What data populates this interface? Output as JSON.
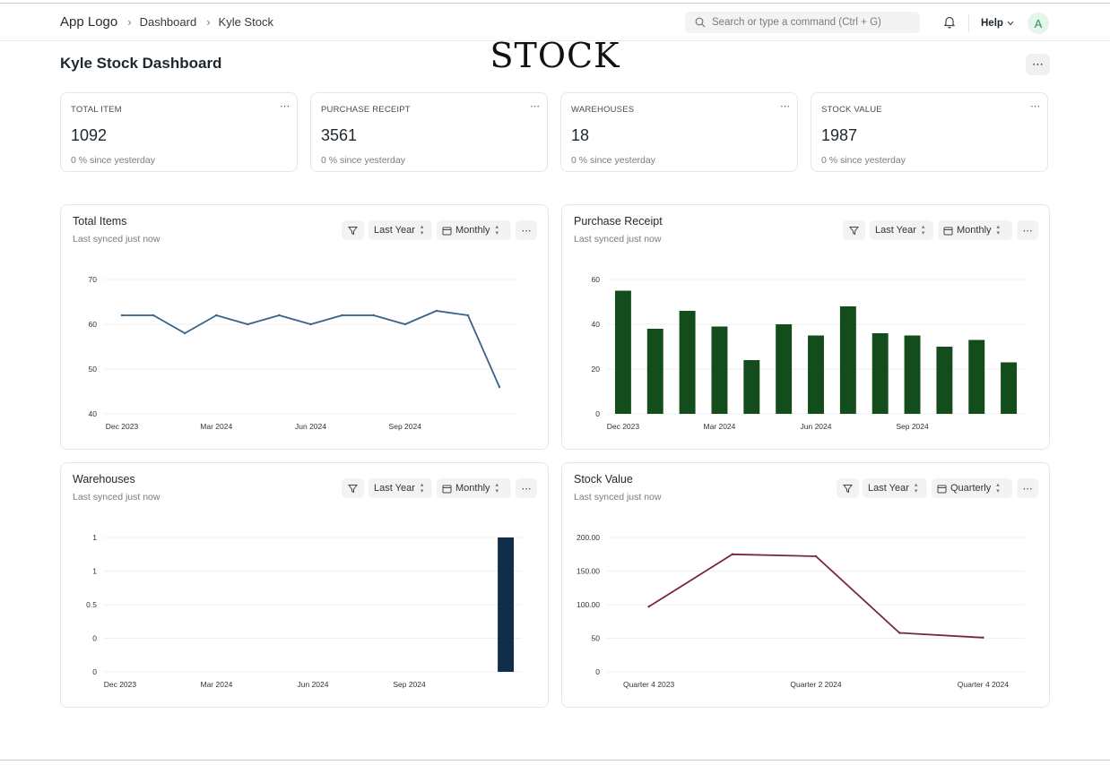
{
  "nav": {
    "logo": "App Logo",
    "crumbs": [
      "Dashboard",
      "Kyle Stock"
    ],
    "search_placeholder": "Search or type a command (Ctrl + G)",
    "help": "Help",
    "avatar_initial": "A"
  },
  "brand_logo": "STOCK",
  "page": {
    "title": "Kyle Stock Dashboard"
  },
  "cards": [
    {
      "label": "TOTAL ITEM",
      "value": "1092",
      "delta": "0 % since yesterday"
    },
    {
      "label": "PURCHASE RECEIPT",
      "value": "3561",
      "delta": "0 % since yesterday"
    },
    {
      "label": "WAREHOUSES",
      "value": "18",
      "delta": "0 % since yesterday"
    },
    {
      "label": "STOCK VALUE",
      "value": "1987",
      "delta": "0 % since yesterday"
    }
  ],
  "panels": [
    {
      "title": "Total Items",
      "subtitle": "Last synced just now",
      "range": "Last Year",
      "interval": "Monthly"
    },
    {
      "title": "Purchase Receipt",
      "subtitle": "Last synced just now",
      "range": "Last Year",
      "interval": "Monthly"
    },
    {
      "title": "Warehouses",
      "subtitle": "Last synced just now",
      "range": "Last Year",
      "interval": "Monthly"
    },
    {
      "title": "Stock Value",
      "subtitle": "Last synced just now",
      "range": "Last Year",
      "interval": "Quarterly"
    }
  ],
  "colors": {
    "line1": "#38628a",
    "bars2": "#124d1b",
    "bars3": "#102d4a",
    "line4": "#7a2640"
  },
  "chart_data": [
    {
      "type": "line",
      "x": [
        "Dec 2023",
        "Jan 2024",
        "Feb 2024",
        "Mar 2024",
        "Apr 2024",
        "May 2024",
        "Jun 2024",
        "Jul 2024",
        "Aug 2024",
        "Sep 2024",
        "Oct 2024",
        "Nov 2024",
        "Dec 2024"
      ],
      "x_tick_labels": [
        "Dec 2023",
        "Mar 2024",
        "Jun 2024",
        "Sep 2024"
      ],
      "values": [
        62,
        62,
        58,
        62,
        60,
        62,
        60,
        62,
        62,
        60,
        63,
        62,
        46
      ],
      "y_ticks": [
        "40",
        "50",
        "60",
        "70"
      ],
      "ylim": [
        40,
        70
      ],
      "grid": true
    },
    {
      "type": "bar",
      "x": [
        "Dec 2023",
        "Jan 2024",
        "Feb 2024",
        "Mar 2024",
        "Apr 2024",
        "May 2024",
        "Jun 2024",
        "Jul 2024",
        "Aug 2024",
        "Sep 2024",
        "Oct 2024",
        "Nov 2024",
        "Dec 2024"
      ],
      "x_tick_labels": [
        "Dec 2023",
        "Mar 2024",
        "Jun 2024",
        "Sep 2024"
      ],
      "values": [
        55,
        38,
        46,
        39,
        24,
        40,
        35,
        48,
        36,
        35,
        30,
        33,
        23
      ],
      "y_ticks": [
        "0",
        "20",
        "40",
        "60"
      ],
      "ylim": [
        0,
        60
      ],
      "grid": true
    },
    {
      "type": "bar",
      "x": [
        "Dec 2023",
        "Jan 2024",
        "Feb 2024",
        "Mar 2024",
        "Apr 2024",
        "May 2024",
        "Jun 2024",
        "Jul 2024",
        "Aug 2024",
        "Sep 2024",
        "Oct 2024",
        "Nov 2024",
        "Dec 2024"
      ],
      "x_tick_labels": [
        "Dec 2023",
        "Mar 2024",
        "Jun 2024",
        "Sep 2024"
      ],
      "values": [
        0,
        0,
        0,
        0,
        0,
        0,
        0,
        0,
        0,
        0,
        0,
        0,
        1
      ],
      "y_ticks": [
        "0",
        "0",
        "0.5",
        "1",
        "1"
      ],
      "ylim": [
        0,
        1
      ],
      "grid": true
    },
    {
      "type": "line",
      "x": [
        "Quarter 4 2023",
        "Quarter 1 2024",
        "Quarter 2 2024",
        "Quarter 3 2024",
        "Quarter 4 2024"
      ],
      "x_tick_labels": [
        "Quarter 4 2023",
        "Quarter 2 2024",
        "Quarter 4 2024"
      ],
      "values": [
        97,
        175,
        172,
        58,
        51
      ],
      "y_ticks": [
        "0",
        "50",
        "100.00",
        "150.00",
        "200.00"
      ],
      "ylim": [
        0,
        200
      ],
      "grid": true
    }
  ]
}
